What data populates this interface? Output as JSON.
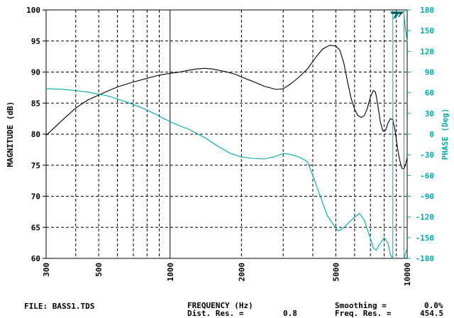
{
  "chart_data": {
    "type": "line",
    "xscale": "log",
    "xlim": [
      300,
      10000
    ],
    "xlabel": "FREQUENCY (Hz)",
    "x_ticks": [
      300,
      500,
      1000,
      2000,
      5000,
      10000
    ],
    "x_tick_labels": [
      "300",
      "500",
      "1000",
      "2000",
      "5000",
      "10000"
    ],
    "y_left": {
      "label": "MAGNITUDE (dB)",
      "lim": [
        60,
        100
      ],
      "ticks": [
        60,
        65,
        70,
        75,
        80,
        85,
        90,
        95,
        100
      ],
      "tick_labels": [
        "60",
        "65",
        "70",
        "75",
        "80",
        "85",
        "90",
        "95",
        "100"
      ]
    },
    "y_right": {
      "label": "PHASE (Deg)",
      "lim": [
        -180,
        180
      ],
      "ticks": [
        -180,
        -150,
        -120,
        -90,
        -60,
        -30,
        0,
        30,
        60,
        90,
        120,
        150,
        180
      ],
      "tick_labels": [
        "-180",
        "-150",
        "-120",
        "-90",
        "-60",
        "-30",
        "0",
        "30",
        "60",
        "90",
        "120",
        "150",
        "180"
      ]
    },
    "grid": true,
    "series": [
      {
        "axis": "left",
        "color": "#000000",
        "points": [
          [
            300,
            79.8
          ],
          [
            350,
            82.2
          ],
          [
            400,
            84.2
          ],
          [
            450,
            85.5
          ],
          [
            500,
            86.3
          ],
          [
            550,
            87.0
          ],
          [
            600,
            87.6
          ],
          [
            700,
            88.4
          ],
          [
            800,
            89.0
          ],
          [
            900,
            89.5
          ],
          [
            1000,
            89.8
          ],
          [
            1100,
            90.0
          ],
          [
            1200,
            90.3
          ],
          [
            1300,
            90.5
          ],
          [
            1400,
            90.6
          ],
          [
            1500,
            90.5
          ],
          [
            1600,
            90.3
          ],
          [
            1700,
            90.1
          ],
          [
            1900,
            89.6
          ],
          [
            2000,
            89.2
          ],
          [
            2200,
            88.6
          ],
          [
            2500,
            87.7
          ],
          [
            2800,
            87.2
          ],
          [
            3000,
            87.3
          ],
          [
            3200,
            88.0
          ],
          [
            3500,
            89.2
          ],
          [
            3800,
            90.5
          ],
          [
            4100,
            92.3
          ],
          [
            4400,
            93.7
          ],
          [
            4700,
            94.3
          ],
          [
            5000,
            94.2
          ],
          [
            5200,
            93.5
          ],
          [
            5400,
            91.5
          ],
          [
            5600,
            88.5
          ],
          [
            5800,
            85.8
          ],
          [
            6000,
            84.0
          ],
          [
            6200,
            83.0
          ],
          [
            6400,
            82.7
          ],
          [
            6600,
            83.0
          ],
          [
            6800,
            84.2
          ],
          [
            7000,
            86.0
          ],
          [
            7200,
            87.0
          ],
          [
            7350,
            86.8
          ],
          [
            7500,
            85.0
          ],
          [
            7700,
            82.0
          ],
          [
            7900,
            80.5
          ],
          [
            8100,
            80.6
          ],
          [
            8300,
            81.8
          ],
          [
            8500,
            82.5
          ],
          [
            8700,
            82.3
          ],
          [
            8900,
            80.5
          ],
          [
            9100,
            77.8
          ],
          [
            9300,
            75.8
          ],
          [
            9500,
            74.5
          ],
          [
            9700,
            74.4
          ],
          [
            9900,
            75.5
          ],
          [
            10000,
            76.2
          ]
        ]
      },
      {
        "axis": "right",
        "color": "#00a8a8",
        "points": [
          [
            300,
            66
          ],
          [
            350,
            65
          ],
          [
            400,
            63
          ],
          [
            450,
            61
          ],
          [
            500,
            58
          ],
          [
            550,
            55
          ],
          [
            600,
            51
          ],
          [
            700,
            43
          ],
          [
            800,
            35
          ],
          [
            900,
            26
          ],
          [
            1000,
            18
          ],
          [
            1100,
            12
          ],
          [
            1200,
            7
          ],
          [
            1400,
            -5
          ],
          [
            1600,
            -18
          ],
          [
            1800,
            -28
          ],
          [
            2000,
            -33
          ],
          [
            2200,
            -35
          ],
          [
            2500,
            -36
          ],
          [
            2800,
            -32
          ],
          [
            3000,
            -28
          ],
          [
            3200,
            -29
          ],
          [
            3500,
            -33
          ],
          [
            3800,
            -40
          ],
          [
            4000,
            -60
          ],
          [
            4300,
            -90
          ],
          [
            4600,
            -118
          ],
          [
            4900,
            -132
          ],
          [
            5100,
            -140
          ],
          [
            5300,
            -138
          ],
          [
            5600,
            -130
          ],
          [
            6000,
            -120
          ],
          [
            6300,
            -115
          ],
          [
            6600,
            -125
          ],
          [
            6900,
            -145
          ],
          [
            7200,
            -165
          ],
          [
            7400,
            -168
          ],
          [
            7700,
            -158
          ],
          [
            8000,
            -150
          ],
          [
            8300,
            -158
          ],
          [
            8500,
            -175
          ],
          [
            8700,
            -180
          ]
        ]
      }
    ],
    "annotations": {
      "file": "FILE: BASS1.TDS",
      "dist_res_label": "Dist. Res. =",
      "dist_res_value": "0.8",
      "smoothing_label": "Smoothing =",
      "smoothing_value": "0.0%",
      "freq_res_label": "Freq. Res. =",
      "freq_res_value": "454.5"
    }
  },
  "colors": {
    "magnitude": "#000000",
    "phase": "#00a8a8",
    "grid": "#000000"
  }
}
